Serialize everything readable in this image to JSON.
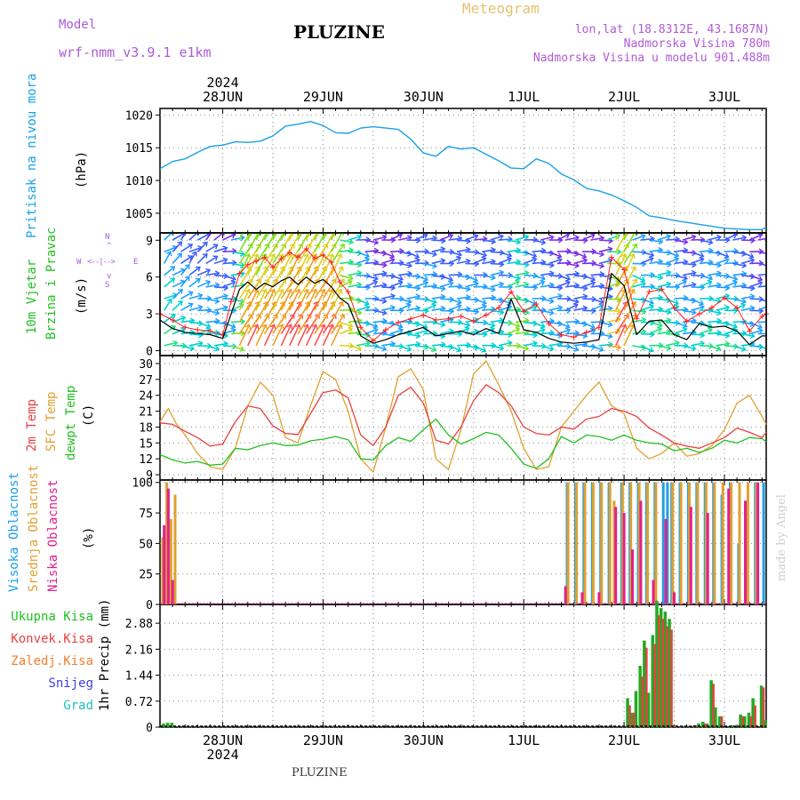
{
  "header": {
    "model_label": "Model",
    "model_name": "wrf-nmm_v3.9.1 e1km",
    "station": "PLUZINE",
    "product": "Meteogram",
    "lonlat": "lon,lat (18.8312E, 43.1687N)",
    "altitude": "Nadmorska Visina 780m",
    "model_altitude": "Nadmorska Visina u modelu 901.488m",
    "year": "2024"
  },
  "footer": {
    "station": "PLUZINE",
    "credit": "made by Angel"
  },
  "colors": {
    "pressure": "#1aa0e8",
    "wind_speed": "#000000",
    "wind_gust": "#ff2020",
    "t2m": "#e84040",
    "sfc": "#e0a030",
    "dewpt": "#22c022",
    "cloud_high": "#22a0e0",
    "cloud_mid": "#e0a030",
    "cloud_low": "#e02090",
    "precip_total": "#22aa22",
    "precip_conv": "#e84040",
    "precip_strat": "#f08030",
    "snow": "#4040e0",
    "graupel": "#20c0c0"
  },
  "x_axis": {
    "days": [
      "28JUN",
      "29JUN",
      "30JUN",
      "1JUL",
      "2JUL",
      "3JUL"
    ],
    "start_hour": -15,
    "end_hour": 130
  },
  "chart_data": [
    {
      "type": "line",
      "id": "pressure",
      "ylabel": "Pritisak na nivou mora",
      "unit": "(hPa)",
      "yticks": [
        1005,
        1010,
        1015,
        1020
      ],
      "ylim": [
        1002,
        1021
      ],
      "series": [
        {
          "name": "Pritisak na nivou mora",
          "x": [
            -15,
            -12,
            -9,
            -6,
            -3,
            0,
            3,
            6,
            9,
            12,
            15,
            18,
            21,
            24,
            27,
            30,
            33,
            36,
            39,
            42,
            45,
            48,
            51,
            54,
            57,
            60,
            63,
            66,
            69,
            72,
            75,
            78,
            81,
            84,
            87,
            90,
            93,
            96,
            99,
            102,
            105,
            108,
            111,
            114,
            117,
            120,
            123,
            126,
            129,
            130
          ],
          "y": [
            1011.8,
            1012.9,
            1013.3,
            1014.3,
            1015.2,
            1015.4,
            1015.9,
            1015.8,
            1016.0,
            1016.8,
            1018.3,
            1018.6,
            1019.0,
            1018.4,
            1017.3,
            1017.2,
            1018.0,
            1018.2,
            1018.0,
            1017.8,
            1016.3,
            1014.2,
            1013.7,
            1015.2,
            1014.8,
            1015.0,
            1014.0,
            1013.0,
            1011.9,
            1011.8,
            1013.3,
            1012.6,
            1011.0,
            1010.1,
            1008.8,
            1008.4,
            1007.8,
            1006.9,
            1005.9,
            1004.6,
            1004.3,
            1003.9,
            1003.6,
            1003.3,
            1003.0,
            1002.7,
            1002.6,
            1002.5,
            1002.5,
            1002.9
          ]
        }
      ]
    },
    {
      "type": "line",
      "id": "wind",
      "ylabel": "10m Vjetar Brzina i Pravac",
      "ylabel_lines": [
        "10m Vjetar",
        "Brzina i Pravac"
      ],
      "unit": "(m/s)",
      "compass": {
        "n": "N",
        "s": "S",
        "w": "W",
        "e": "E"
      },
      "yticks": [
        0,
        3,
        6,
        9
      ],
      "ylim": [
        -0.4,
        9.6
      ],
      "series": [
        {
          "name": "Brzina",
          "x": [
            -15,
            -12,
            -9,
            -6,
            -3,
            0,
            2,
            4,
            6,
            8,
            10,
            12,
            14,
            16,
            18,
            20,
            22,
            24,
            26,
            28,
            30,
            33,
            36,
            39,
            42,
            45,
            48,
            51,
            54,
            57,
            60,
            63,
            66,
            69,
            72,
            75,
            78,
            81,
            84,
            87,
            90,
            93,
            96,
            99,
            102,
            105,
            108,
            111,
            114,
            117,
            120,
            123,
            126,
            129,
            130
          ],
          "y": [
            2.5,
            1.8,
            1.5,
            1.4,
            1.3,
            1.0,
            3.0,
            5.0,
            5.6,
            5.0,
            5.5,
            5.2,
            5.7,
            6.0,
            5.4,
            6.0,
            5.5,
            5.8,
            5.2,
            4.3,
            3.8,
            1.2,
            0.6,
            0.9,
            1.3,
            1.6,
            1.9,
            1.2,
            1.4,
            1.6,
            1.3,
            1.8,
            1.4,
            4.2,
            1.7,
            1.5,
            1.0,
            0.7,
            0.6,
            0.7,
            0.9,
            6.3,
            5.3,
            1.3,
            2.4,
            2.5,
            1.3,
            0.9,
            2.2,
            1.9,
            2.0,
            1.6,
            0.5,
            1.2,
            1.2
          ]
        },
        {
          "name": "Udari",
          "x": [
            -15,
            -12,
            -9,
            -6,
            -3,
            0,
            2,
            4,
            6,
            8,
            10,
            12,
            14,
            16,
            18,
            20,
            22,
            24,
            26,
            28,
            30,
            33,
            36,
            39,
            42,
            45,
            48,
            51,
            54,
            57,
            60,
            63,
            66,
            69,
            72,
            75,
            78,
            81,
            84,
            87,
            90,
            93,
            96,
            99,
            102,
            105,
            108,
            111,
            114,
            117,
            120,
            123,
            126,
            129,
            130
          ],
          "y": [
            3.0,
            2.5,
            1.9,
            1.7,
            1.6,
            1.3,
            4.0,
            6.3,
            7.0,
            7.3,
            7.6,
            6.8,
            7.5,
            8.0,
            7.6,
            8.3,
            7.5,
            7.8,
            7.2,
            5.6,
            4.8,
            1.9,
            0.8,
            1.7,
            2.3,
            2.6,
            2.9,
            2.5,
            2.6,
            2.8,
            2.4,
            2.9,
            3.5,
            4.8,
            3.2,
            3.8,
            2.2,
            1.3,
            1.1,
            1.5,
            1.9,
            7.6,
            6.6,
            2.6,
            4.8,
            5.0,
            3.5,
            2.4,
            3.0,
            3.5,
            4.3,
            3.5,
            1.6,
            2.8,
            3.0
          ]
        }
      ]
    },
    {
      "type": "line",
      "id": "temperature",
      "ylabel_lines": [
        "2m Temp",
        "SFC Temp",
        "dewpt Temp"
      ],
      "unit": "(C)",
      "yticks": [
        9,
        12,
        15,
        18,
        21,
        24,
        27,
        30
      ],
      "ylim": [
        8,
        31.5
      ],
      "series": [
        {
          "name": "2m Temp",
          "x": [
            -15,
            -12,
            -9,
            -6,
            -3,
            0,
            3,
            6,
            9,
            12,
            15,
            18,
            21,
            24,
            27,
            30,
            33,
            36,
            39,
            42,
            45,
            48,
            51,
            54,
            57,
            60,
            63,
            66,
            69,
            72,
            75,
            78,
            81,
            84,
            87,
            90,
            93,
            96,
            99,
            102,
            105,
            108,
            111,
            114,
            117,
            120,
            123,
            126,
            129,
            130
          ],
          "y": [
            18.8,
            18.5,
            17.2,
            16.0,
            14.4,
            14.8,
            19.0,
            22.0,
            21.5,
            18.2,
            16.8,
            16.6,
            20.5,
            24.5,
            25.0,
            23.5,
            16.5,
            14.5,
            18.0,
            24.0,
            25.5,
            22.5,
            15.5,
            14.8,
            18.0,
            23.0,
            26.0,
            24.5,
            22.0,
            18.0,
            16.8,
            16.5,
            18.0,
            17.6,
            19.5,
            20.0,
            21.5,
            21.0,
            20.0,
            17.8,
            16.5,
            15.0,
            14.4,
            14.0,
            15.0,
            16.0,
            17.8,
            17.0,
            16.0,
            17.0
          ]
        },
        {
          "name": "SFC Temp",
          "x": [
            -15,
            -13,
            -11,
            -9,
            -6,
            -3,
            0,
            3,
            6,
            9,
            12,
            15,
            18,
            21,
            24,
            27,
            30,
            33,
            36,
            39,
            42,
            45,
            48,
            51,
            54,
            57,
            60,
            63,
            66,
            69,
            72,
            75,
            78,
            81,
            84,
            87,
            90,
            93,
            96,
            99,
            102,
            105,
            108,
            111,
            114,
            117,
            120,
            123,
            126,
            129,
            130
          ],
          "y": [
            19.0,
            21.5,
            18.5,
            16.5,
            13.0,
            10.5,
            10.0,
            14.0,
            22.0,
            26.5,
            24.0,
            16.0,
            15.0,
            22.0,
            28.5,
            27.0,
            21.0,
            12.0,
            9.5,
            18.0,
            27.5,
            29.0,
            25.0,
            12.0,
            10.0,
            17.5,
            28.0,
            30.5,
            26.0,
            21.0,
            14.0,
            10.0,
            10.5,
            18.0,
            21.0,
            24.0,
            26.5,
            22.0,
            20.5,
            14.0,
            12.0,
            13.0,
            15.0,
            12.5,
            13.0,
            14.5,
            17.5,
            22.5,
            24.0,
            20.0,
            18.5
          ]
        },
        {
          "name": "dewpt Temp",
          "x": [
            -15,
            -12,
            -9,
            -6,
            -3,
            0,
            3,
            6,
            9,
            12,
            15,
            18,
            21,
            24,
            27,
            30,
            33,
            36,
            39,
            42,
            45,
            48,
            51,
            54,
            57,
            60,
            63,
            66,
            69,
            72,
            75,
            78,
            81,
            84,
            87,
            90,
            93,
            96,
            99,
            102,
            105,
            108,
            111,
            114,
            117,
            120,
            123,
            126,
            129,
            130
          ],
          "y": [
            12.8,
            11.8,
            11.2,
            11.5,
            10.8,
            11.0,
            14.0,
            13.7,
            14.5,
            15.0,
            14.5,
            14.6,
            15.4,
            15.7,
            16.2,
            15.6,
            12.0,
            11.8,
            14.5,
            16.0,
            15.3,
            17.5,
            19.5,
            16.5,
            14.8,
            15.8,
            17.0,
            16.5,
            14.0,
            11.0,
            10.2,
            12.0,
            16.2,
            15.0,
            16.5,
            16.2,
            15.5,
            16.5,
            15.5,
            15.0,
            14.8,
            13.5,
            14.0,
            13.2,
            14.0,
            15.5,
            15.0,
            16.0,
            15.8,
            15.2
          ]
        }
      ]
    },
    {
      "type": "bar",
      "id": "cloud",
      "ylabel_lines": [
        "Visoka Oblacnost",
        "Srednja Oblacnost",
        "Niska Oblacnost"
      ],
      "unit": "(%)",
      "yticks": [
        0,
        25,
        50,
        75,
        100
      ],
      "ylim": [
        0,
        102
      ],
      "series": [
        {
          "name": "Visoka Oblacnost",
          "x": [
            -14,
            -12,
            82,
            84,
            86,
            88,
            90,
            92,
            95,
            97,
            99,
            101,
            103,
            105,
            106,
            107,
            109,
            111,
            113,
            115,
            117,
            119,
            121,
            123,
            125,
            127,
            129
          ],
          "y": [
            60,
            8,
            100,
            100,
            100,
            100,
            100,
            100,
            100,
            100,
            100,
            100,
            100,
            100,
            100,
            100,
            100,
            100,
            100,
            100,
            100,
            90,
            100,
            50,
            45,
            100,
            100
          ]
        },
        {
          "name": "Srednja Oblacnost",
          "x": [
            -14,
            -13,
            -12,
            -11,
            83,
            85,
            87,
            89,
            91,
            93,
            94,
            96,
            98,
            100,
            102,
            104,
            108,
            110,
            112,
            114,
            116,
            118,
            120,
            122,
            124,
            126,
            128
          ],
          "y": [
            55,
            100,
            70,
            90,
            100,
            100,
            100,
            100,
            100,
            100,
            85,
            100,
            100,
            100,
            100,
            100,
            100,
            100,
            100,
            100,
            100,
            100,
            100,
            100,
            100,
            100,
            100
          ]
        },
        {
          "name": "Niska Oblacnost",
          "x": [
            -14,
            -13,
            -12,
            82,
            86,
            90,
            94,
            96,
            98,
            100,
            103,
            106,
            108,
            112,
            116,
            121,
            125,
            128
          ],
          "y": [
            65,
            95,
            20,
            15,
            10,
            10,
            80,
            75,
            45,
            85,
            20,
            70,
            10,
            80,
            75,
            95,
            85,
            100
          ]
        }
      ]
    },
    {
      "type": "bar",
      "id": "precip",
      "ylabel_lines": [
        "Ukupna Kisa",
        "Konvek.Kisa",
        "Zaledj.Kisa",
        "Snijeg",
        "Grad"
      ],
      "unit": "1hr Precip (mm)",
      "yticks": [
        0,
        0.72,
        1.44,
        2.16,
        2.88
      ],
      "ylim": [
        0,
        3.4
      ],
      "series": [
        {
          "name": "Ukupna Kisa",
          "x": [
            -14,
            -13,
            -12,
            97,
            98,
            99,
            100,
            101,
            102,
            103,
            104,
            105,
            106,
            107,
            108,
            113,
            114,
            115,
            116,
            117,
            118,
            119,
            122,
            124,
            125,
            126,
            127,
            129,
            130
          ],
          "y": [
            0.1,
            0.12,
            0.12,
            0.8,
            0.4,
            1.0,
            1.7,
            2.4,
            0.95,
            2.55,
            3.5,
            3.3,
            3.2,
            3.0,
            0.05,
            0.05,
            0.1,
            0.15,
            0.1,
            1.3,
            0.55,
            0.3,
            0.05,
            0.35,
            0.3,
            0.4,
            0.8,
            1.15,
            0.2
          ]
        },
        {
          "name": "Konvek.Kisa",
          "x": [
            97,
            98,
            100,
            101,
            103,
            104,
            105,
            106,
            107,
            108,
            113,
            115,
            117,
            119,
            124,
            126,
            127,
            129
          ],
          "y": [
            0.6,
            0.4,
            1.4,
            2.2,
            2.3,
            3.1,
            3.0,
            2.8,
            2.7,
            0.05,
            0.05,
            0.1,
            1.2,
            0.3,
            0.3,
            0.3,
            0.6,
            1.1
          ]
        },
        {
          "name": "Zaledj.Kisa",
          "x": [],
          "y": []
        },
        {
          "name": "Snijeg",
          "x": [],
          "y": []
        },
        {
          "name": "Grad",
          "x": [],
          "y": []
        }
      ]
    }
  ]
}
